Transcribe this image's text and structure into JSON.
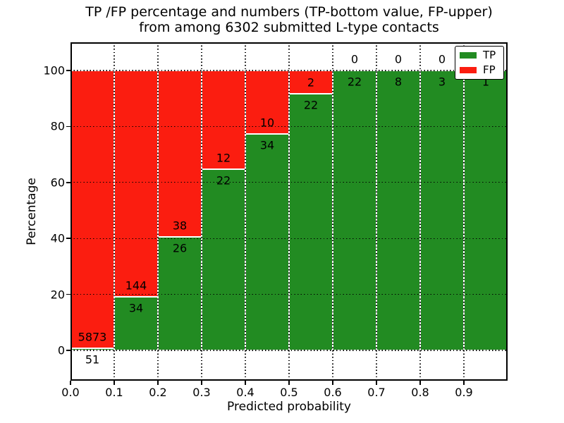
{
  "title": {
    "line1": "TP /FP percentage and numbers (TP-bottom value, FP-upper)",
    "line2": "from among 6302 submitted L-type contacts"
  },
  "chart_data": {
    "type": "bar",
    "variant": "stacked-normalized-percent",
    "title": "TP /FP percentage and numbers (TP-bottom value, FP-upper) from among 6302 submitted L-type contacts",
    "xlabel": "Predicted probability",
    "ylabel": "Percentage",
    "total_contacts": 6302,
    "categories": [
      "0.0-0.1",
      "0.1-0.2",
      "0.2-0.3",
      "0.3-0.4",
      "0.4-0.5",
      "0.5-0.6",
      "0.6-0.7",
      "0.7-0.8",
      "0.8-0.9",
      "0.9-1.0"
    ],
    "bin_starts": [
      0.0,
      0.1,
      0.2,
      0.3,
      0.4,
      0.5,
      0.6,
      0.7,
      0.8,
      0.9
    ],
    "bin_width": 0.1,
    "series": [
      {
        "name": "TP",
        "color": "#228b22",
        "counts": [
          51,
          34,
          26,
          22,
          34,
          22,
          22,
          8,
          3,
          1
        ]
      },
      {
        "name": "FP",
        "color": "#fb1d10",
        "counts": [
          5873,
          144,
          38,
          12,
          10,
          2,
          0,
          0,
          0,
          0
        ]
      }
    ],
    "tp_percent": [
      0.86,
      19.1,
      40.63,
      64.71,
      77.27,
      91.67,
      100,
      100,
      100,
      100
    ],
    "xticks": [
      "0.0",
      "0.1",
      "0.2",
      "0.3",
      "0.4",
      "0.5",
      "0.6",
      "0.7",
      "0.8",
      "0.9"
    ],
    "yticks": [
      0,
      20,
      40,
      60,
      80,
      100
    ],
    "xlim": [
      0.0,
      1.0
    ],
    "ylim": [
      -11,
      110
    ],
    "grid": "dotted-black-both-axes",
    "legend_position": "upper-right",
    "bar_edge_color": "#ffffff",
    "background": "#ffffff"
  }
}
